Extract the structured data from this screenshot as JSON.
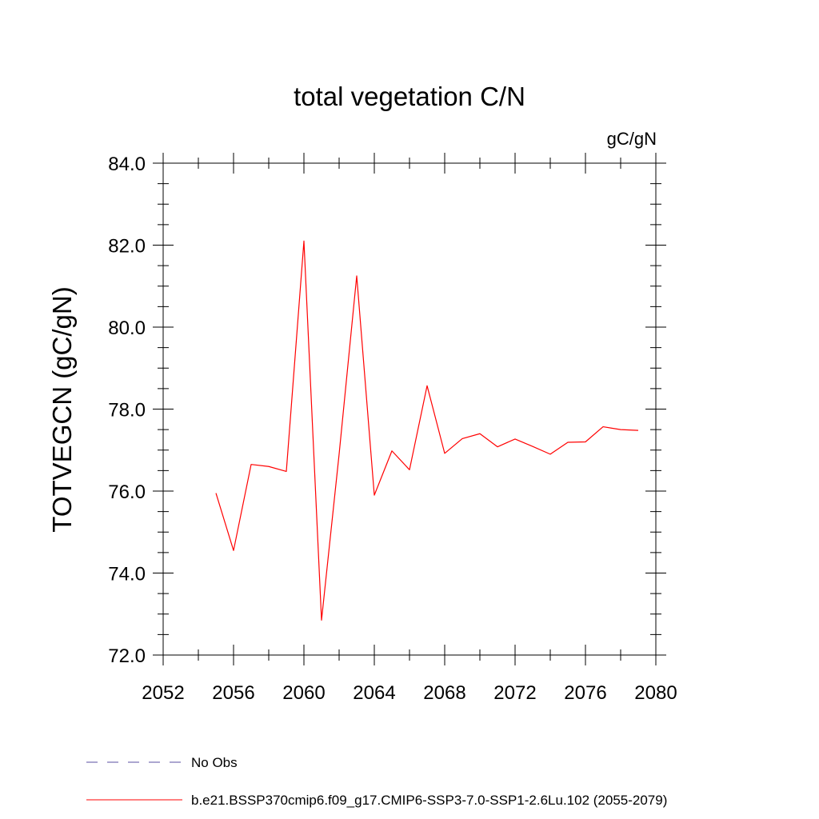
{
  "chart_data": {
    "type": "line",
    "title": "total vegetation C/N",
    "units_label": "gC/gN",
    "ylabel": "TOTVEGCN  (gC/gN)",
    "xlabel": "",
    "xlim": [
      2052,
      2080
    ],
    "ylim": [
      72.0,
      84.0
    ],
    "x_ticks": [
      2052,
      2056,
      2060,
      2064,
      2068,
      2072,
      2076,
      2080
    ],
    "x_tick_labels": [
      "2052",
      "2056",
      "2060",
      "2064",
      "2068",
      "2072",
      "2076",
      "2080"
    ],
    "x_minor_step": 2,
    "y_ticks": [
      72.0,
      74.0,
      76.0,
      78.0,
      80.0,
      82.0,
      84.0
    ],
    "y_tick_labels": [
      "72.0",
      "74.0",
      "76.0",
      "78.0",
      "80.0",
      "82.0",
      "84.0"
    ],
    "y_minor_step": 0.5,
    "grid": false,
    "series": [
      {
        "name": "No Obs",
        "color": "#5a4fa0",
        "dash": "dashed",
        "x": [],
        "y": []
      },
      {
        "name": "b.e21.BSSP370cmip6.f09_g17.CMIP6-SSP3-7.0-SSP1-2.6Lu.102 (2055-2079)",
        "color": "#ff0000",
        "dash": "solid",
        "x": [
          2055,
          2056,
          2057,
          2058,
          2059,
          2060,
          2061,
          2062,
          2063,
          2064,
          2065,
          2066,
          2067,
          2068,
          2069,
          2070,
          2071,
          2072,
          2073,
          2074,
          2075,
          2076,
          2077,
          2078,
          2079
        ],
        "y": [
          75.95,
          74.55,
          76.65,
          76.6,
          76.48,
          82.1,
          72.85,
          76.9,
          81.25,
          75.9,
          76.98,
          76.52,
          78.57,
          76.92,
          77.28,
          77.4,
          77.08,
          77.27,
          77.09,
          76.9,
          77.19,
          77.2,
          77.57,
          77.5,
          77.48
        ]
      }
    ],
    "legend_position": "bottom-left"
  }
}
